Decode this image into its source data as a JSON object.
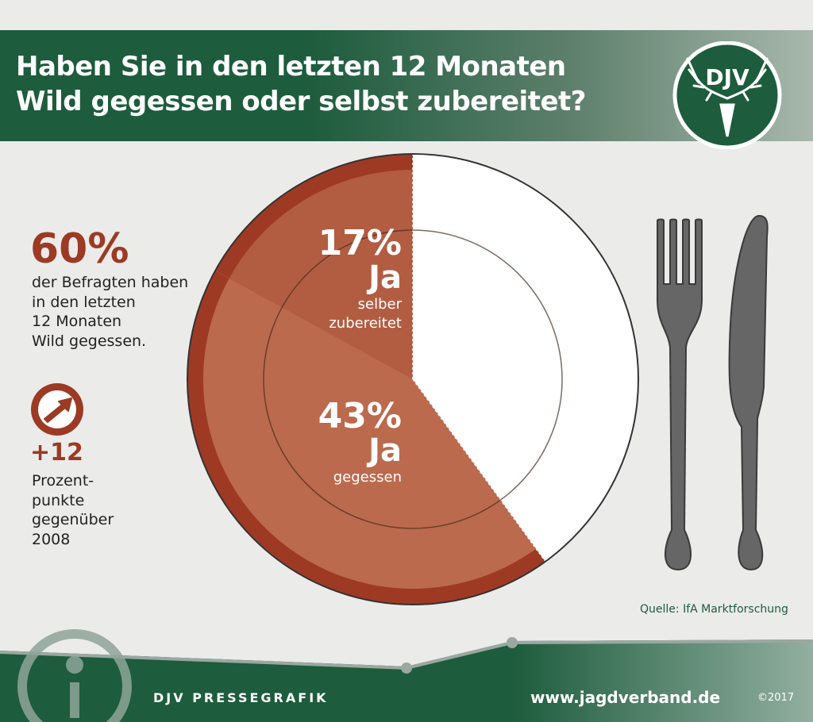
{
  "header": {
    "title_line1": "Haben Sie in den letzten 12 Monaten",
    "title_line2": "Wild gegessen oder selbst zubereitet?",
    "logo_text": "DJV"
  },
  "left_panel": {
    "big_stat": "60%",
    "big_stat_text": [
      "der Befragten haben",
      "in den letzten",
      "12 Monaten",
      "Wild gegessen."
    ],
    "arrow_icon": "arrow-up-right-icon",
    "delta": "+12",
    "delta_text": [
      "Prozent-",
      "punkte",
      "gegenüber",
      "2008"
    ]
  },
  "chart_data": {
    "type": "pie",
    "slices": [
      {
        "label": "Ja selber zubereitet",
        "value": 17,
        "pct_text": "17%",
        "ja_text": "Ja",
        "sub_lines": [
          "selber",
          "zubereitet"
        ],
        "color": "#b25d42"
      },
      {
        "label": "Ja gegessen",
        "value": 43,
        "pct_text": "43%",
        "ja_text": "Ja",
        "sub_lines": [
          "gegessen"
        ],
        "color": "#bb6a4d"
      },
      {
        "label": "",
        "value": 40,
        "color": "#ffffff"
      }
    ],
    "rim_color": "#9e3a24",
    "outline_color": "#333333"
  },
  "source": "Quelle: IfA Marktforschung",
  "footer": {
    "left": "DJV PRESSEGRAFIK",
    "url": "www.jagdverband.de",
    "copyright": "©2017",
    "info_icon": "info-icon"
  },
  "colors": {
    "brand_green": "#1d5c3d",
    "accent_red": "#9c3a23",
    "background": "#ebebea"
  }
}
